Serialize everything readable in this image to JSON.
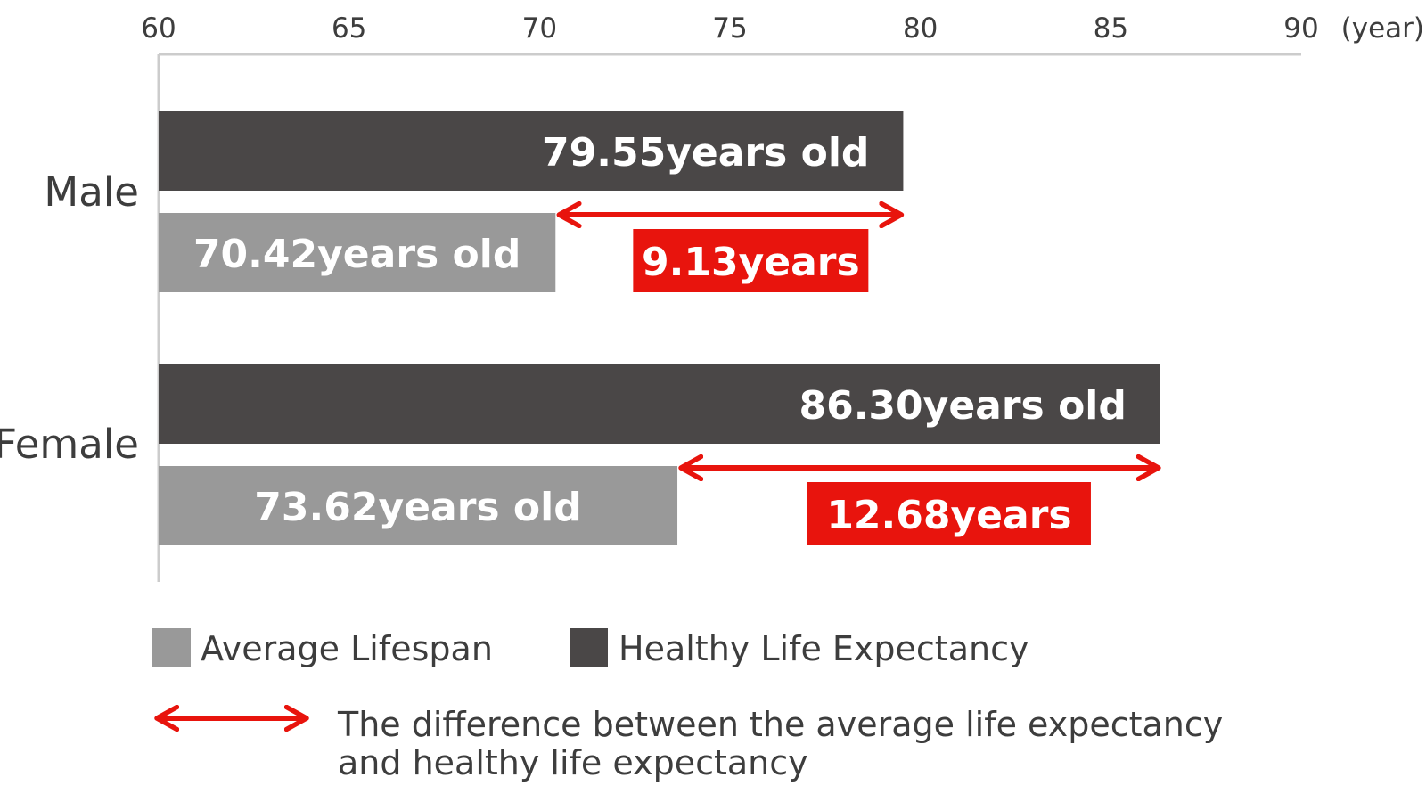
{
  "chart_data": {
    "type": "bar",
    "orientation": "horizontal",
    "categories": [
      "Male",
      "Female"
    ],
    "series": [
      {
        "name": "Healthy Life Expectancy",
        "values": [
          79.55,
          86.3
        ],
        "labels": [
          "79.55years old",
          "86.30years old"
        ],
        "color": "#4a4747"
      },
      {
        "name": "Average Lifespan",
        "values": [
          70.42,
          73.62
        ],
        "labels": [
          "70.42years old",
          "73.62years old"
        ],
        "color": "#999999"
      }
    ],
    "differences": [
      {
        "category": "Male",
        "from": 70.42,
        "to": 79.55,
        "label": "9.13years"
      },
      {
        "category": "Female",
        "from": 73.62,
        "to": 86.3,
        "label": "12.68years"
      }
    ],
    "x_ticks": [
      "60",
      "65",
      "70",
      "75",
      "80",
      "85",
      "90"
    ],
    "x_unit": "(year)",
    "xlim": [
      60,
      90
    ],
    "grid": false,
    "legend_position": "bottom",
    "legend": {
      "average": "Average Lifespan",
      "healthy": "Healthy Life Expectancy",
      "difference_line1": "The difference between the average life expectancy",
      "difference_line2": "and healthy life expectancy"
    },
    "colors": {
      "healthy": "#4a4747",
      "average": "#999999",
      "difference": "#e8140d",
      "axis": "#cccccc"
    }
  }
}
